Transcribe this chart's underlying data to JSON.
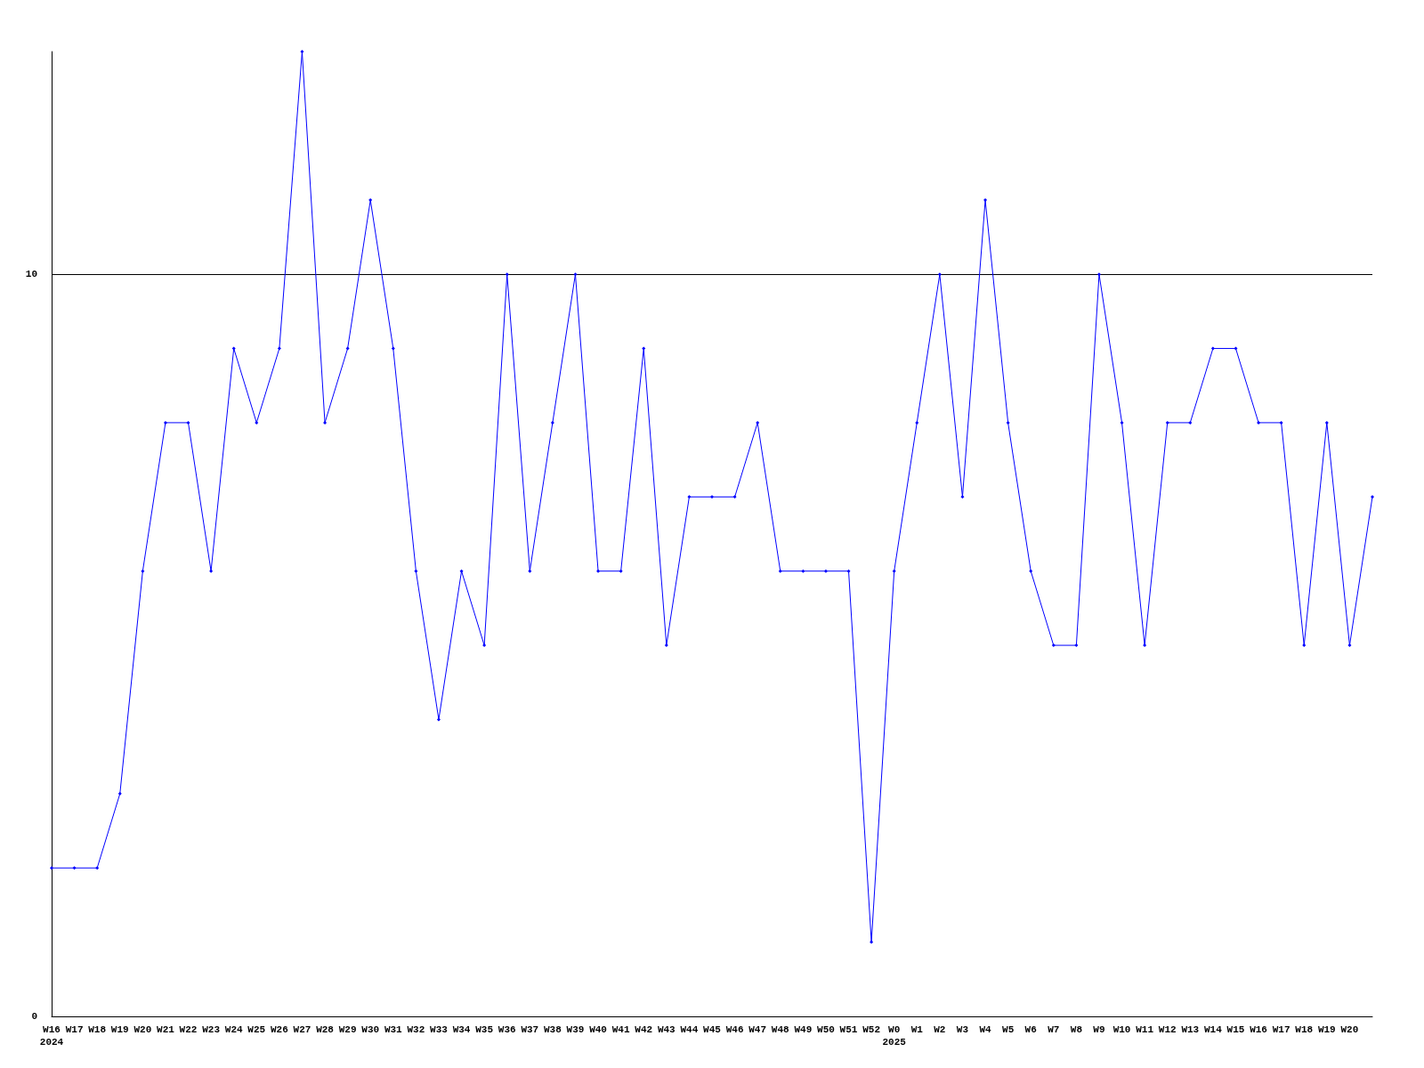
{
  "chart_data": {
    "type": "line",
    "categories": [
      "W16\n2024",
      "W17",
      "W18",
      "W19",
      "W20",
      "W21",
      "W22",
      "W23",
      "W24",
      "W25",
      "W26",
      "W27",
      "W28",
      "W29",
      "W30",
      "W31",
      "W32",
      "W33",
      "W34",
      "W35",
      "W36",
      "W37",
      "W38",
      "W39",
      "W40",
      "W41",
      "W42",
      "W43",
      "W44",
      "W45",
      "W46",
      "W47",
      "W48",
      "W49",
      "W50",
      "W51",
      "W52",
      "W0\n2025",
      "W1",
      "W2",
      "W3",
      "W4",
      "W5",
      "W6",
      "W7",
      "W8",
      "W9",
      "W10",
      "W11",
      "W12",
      "W13",
      "W14",
      "W15",
      "W16",
      "W17",
      "W18",
      "W19",
      "W20",
      null
    ],
    "series": [
      {
        "color": "#0000ff",
        "values": [
          2,
          2,
          2,
          3,
          6,
          8,
          8,
          6,
          9,
          8,
          9,
          13,
          8,
          9,
          11,
          9,
          6,
          4,
          6,
          5,
          10,
          6,
          8,
          10,
          6,
          6,
          9,
          5,
          7,
          7,
          7,
          8,
          6,
          6,
          6,
          6,
          1,
          6,
          8,
          10,
          7,
          11,
          8,
          6,
          5,
          5,
          10,
          8,
          5,
          8,
          8,
          9,
          9,
          8,
          8,
          5,
          8,
          5,
          7
        ]
      }
    ],
    "ylim": [
      0,
      13
    ],
    "yticks": [
      0,
      10
    ],
    "grid": "y",
    "marker": "diamond",
    "line_style": "solid"
  }
}
